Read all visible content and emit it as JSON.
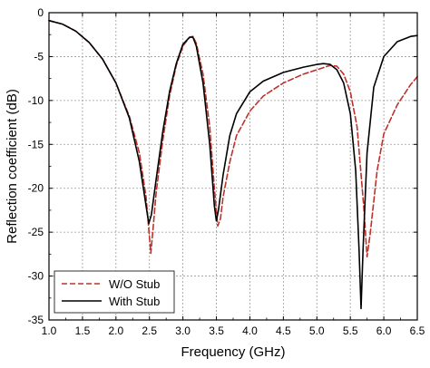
{
  "chart_data": {
    "type": "line",
    "xlabel": "Frequency (GHz)",
    "ylabel": "Reflection coefficient (dB)",
    "xlim": [
      1.0,
      6.5
    ],
    "ylim": [
      -35,
      0
    ],
    "xticks": [
      1.0,
      1.5,
      2.0,
      2.5,
      3.0,
      3.5,
      4.0,
      4.5,
      5.0,
      5.5,
      6.0,
      6.5
    ],
    "xtick_labels": [
      "1.0",
      "1.5",
      "2.0",
      "2.5",
      "3.0",
      "3.5",
      "4.0",
      "4.5",
      "5.0",
      "5.5",
      "6.0",
      "6.5"
    ],
    "yticks": [
      0,
      -5,
      -10,
      -15,
      -20,
      -25,
      -30,
      -35
    ],
    "ytick_labels": [
      "0",
      "-5",
      "-10",
      "-15",
      "-20",
      "-25",
      "-30",
      "-35"
    ],
    "grid": true,
    "legend_position": "bottom-left",
    "series": [
      {
        "name": "W/O Stub",
        "color": "#c0302a",
        "dash": "dashed",
        "points": [
          [
            1.0,
            -0.9
          ],
          [
            1.2,
            -1.3
          ],
          [
            1.4,
            -2.1
          ],
          [
            1.6,
            -3.4
          ],
          [
            1.8,
            -5.3
          ],
          [
            2.0,
            -8.0
          ],
          [
            2.2,
            -11.8
          ],
          [
            2.35,
            -16.0
          ],
          [
            2.45,
            -21.0
          ],
          [
            2.5,
            -25.5
          ],
          [
            2.52,
            -27.4
          ],
          [
            2.55,
            -25.0
          ],
          [
            2.6,
            -20.5
          ],
          [
            2.7,
            -14.5
          ],
          [
            2.8,
            -9.5
          ],
          [
            2.9,
            -6.0
          ],
          [
            3.0,
            -3.8
          ],
          [
            3.1,
            -2.8
          ],
          [
            3.15,
            -2.7
          ],
          [
            3.2,
            -3.5
          ],
          [
            3.3,
            -7.0
          ],
          [
            3.4,
            -13.0
          ],
          [
            3.47,
            -20.0
          ],
          [
            3.52,
            -24.3
          ],
          [
            3.56,
            -23.5
          ],
          [
            3.6,
            -21.0
          ],
          [
            3.7,
            -17.0
          ],
          [
            3.8,
            -14.0
          ],
          [
            4.0,
            -11.2
          ],
          [
            4.2,
            -9.5
          ],
          [
            4.5,
            -8.0
          ],
          [
            4.8,
            -7.0
          ],
          [
            5.0,
            -6.5
          ],
          [
            5.2,
            -6.0
          ],
          [
            5.3,
            -6.1
          ],
          [
            5.4,
            -7.0
          ],
          [
            5.5,
            -9.0
          ],
          [
            5.6,
            -13.0
          ],
          [
            5.7,
            -22.0
          ],
          [
            5.75,
            -27.8
          ],
          [
            5.8,
            -25.0
          ],
          [
            5.9,
            -18.0
          ],
          [
            6.0,
            -13.8
          ],
          [
            6.2,
            -10.5
          ],
          [
            6.4,
            -8.2
          ],
          [
            6.5,
            -7.3
          ]
        ]
      },
      {
        "name": "With Stub",
        "color": "#000000",
        "dash": "solid",
        "points": [
          [
            1.0,
            -0.9
          ],
          [
            1.2,
            -1.3
          ],
          [
            1.4,
            -2.1
          ],
          [
            1.6,
            -3.4
          ],
          [
            1.8,
            -5.3
          ],
          [
            2.0,
            -8.0
          ],
          [
            2.2,
            -12.0
          ],
          [
            2.35,
            -17.0
          ],
          [
            2.45,
            -22.0
          ],
          [
            2.49,
            -24.0
          ],
          [
            2.53,
            -23.0
          ],
          [
            2.6,
            -19.0
          ],
          [
            2.7,
            -13.5
          ],
          [
            2.8,
            -9.0
          ],
          [
            2.9,
            -5.8
          ],
          [
            3.0,
            -3.6
          ],
          [
            3.1,
            -2.8
          ],
          [
            3.15,
            -2.8
          ],
          [
            3.2,
            -3.8
          ],
          [
            3.3,
            -8.0
          ],
          [
            3.4,
            -15.0
          ],
          [
            3.47,
            -22.0
          ],
          [
            3.5,
            -23.7
          ],
          [
            3.53,
            -22.5
          ],
          [
            3.6,
            -18.5
          ],
          [
            3.7,
            -14.0
          ],
          [
            3.8,
            -11.5
          ],
          [
            4.0,
            -9.0
          ],
          [
            4.2,
            -7.8
          ],
          [
            4.5,
            -6.8
          ],
          [
            4.8,
            -6.2
          ],
          [
            5.0,
            -5.9
          ],
          [
            5.1,
            -5.8
          ],
          [
            5.2,
            -5.9
          ],
          [
            5.3,
            -6.5
          ],
          [
            5.4,
            -8.0
          ],
          [
            5.5,
            -11.5
          ],
          [
            5.58,
            -18.0
          ],
          [
            5.63,
            -27.0
          ],
          [
            5.66,
            -33.7
          ],
          [
            5.69,
            -27.0
          ],
          [
            5.75,
            -16.0
          ],
          [
            5.85,
            -8.5
          ],
          [
            6.0,
            -5.0
          ],
          [
            6.2,
            -3.3
          ],
          [
            6.4,
            -2.7
          ],
          [
            6.5,
            -2.6
          ]
        ]
      }
    ]
  }
}
